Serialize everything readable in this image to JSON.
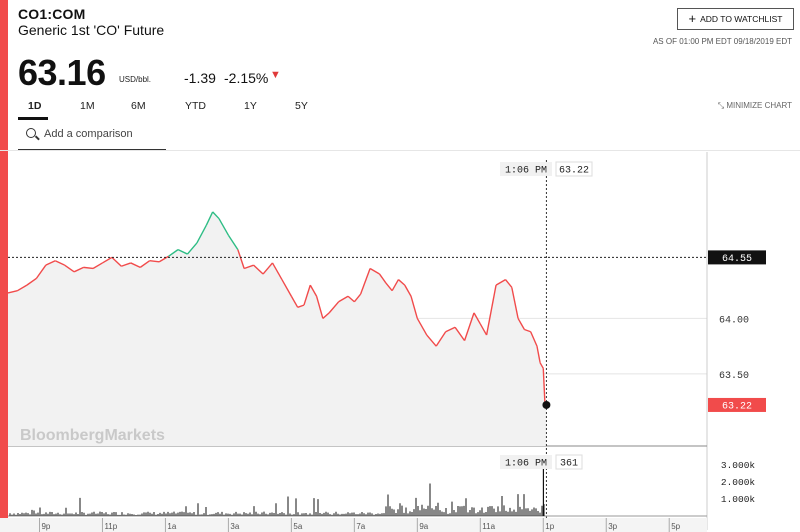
{
  "header": {
    "ticker": "CO1:COM",
    "name": "Generic 1st 'CO' Future",
    "watchlist_label": "ADD TO WATCHLIST",
    "as_of": "AS OF 01:00 PM EDT 09/18/2019 EDT",
    "price": "63.16",
    "unit": "USD/bbl.",
    "change": "-1.39",
    "change_pct": "-2.15%"
  },
  "tabs": [
    "1D",
    "1M",
    "6M",
    "YTD",
    "1Y",
    "5Y"
  ],
  "active_tab": "1D",
  "minimize_label": "MINIMIZE CHART",
  "compare_placeholder": "Add a comparison",
  "watermark": "BloombergMarkets",
  "colors": {
    "down": "#f14b4b",
    "up": "#2ebd85",
    "fill": "#f2f2f2"
  },
  "chart_data": {
    "type": "line",
    "ylim": [
      62.85,
      65.5
    ],
    "y_ticks": [
      "64.00",
      "63.50"
    ],
    "y_ticks_values": [
      64.0,
      63.5
    ],
    "x_ticks": [
      "9p",
      "11p",
      "1a",
      "3a",
      "5a",
      "7a",
      "9a",
      "11a",
      "1p",
      "3p",
      "5p"
    ],
    "x_ticks_hours": [
      21,
      23,
      25,
      27,
      29,
      31,
      33,
      35,
      37,
      39,
      41
    ],
    "x_range_hours": [
      20.0,
      42.2
    ],
    "prev_close": 64.55,
    "prev_close_label": "64.55",
    "last_value": 63.22,
    "last_label": "63.22",
    "crosshair_time": "1:06 PM",
    "crosshair_value": "63.22",
    "crosshair_hour": 37.1,
    "series": [
      {
        "points": [
          [
            20.0,
            64.23
          ],
          [
            20.3,
            64.25
          ],
          [
            20.6,
            64.3
          ],
          [
            20.9,
            64.36
          ],
          [
            21.2,
            64.48
          ],
          [
            21.5,
            64.52
          ],
          [
            21.8,
            64.48
          ],
          [
            22.1,
            64.42
          ],
          [
            22.4,
            64.46
          ],
          [
            22.7,
            64.45
          ],
          [
            23.0,
            64.5
          ],
          [
            23.3,
            64.55
          ],
          [
            23.6,
            64.47
          ],
          [
            23.9,
            64.5
          ],
          [
            24.2,
            64.46
          ],
          [
            24.5,
            64.52
          ],
          [
            24.8,
            64.51
          ],
          [
            25.1,
            64.56
          ],
          [
            25.4,
            64.62
          ],
          [
            25.7,
            64.58
          ],
          [
            26.0,
            64.68
          ],
          [
            26.3,
            64.84
          ],
          [
            26.5,
            64.96
          ],
          [
            26.7,
            64.9
          ],
          [
            27.0,
            64.75
          ],
          [
            27.3,
            64.62
          ],
          [
            27.5,
            64.45
          ],
          [
            27.8,
            64.48
          ],
          [
            28.1,
            64.4
          ],
          [
            28.4,
            64.5
          ],
          [
            28.7,
            64.35
          ],
          [
            29.0,
            64.2
          ],
          [
            29.2,
            64.1
          ],
          [
            29.4,
            64.12
          ],
          [
            29.6,
            64.3
          ],
          [
            29.8,
            64.2
          ],
          [
            30.0,
            64.0
          ],
          [
            30.2,
            64.05
          ],
          [
            30.5,
            64.15
          ],
          [
            30.8,
            64.2
          ],
          [
            31.0,
            64.15
          ],
          [
            31.2,
            64.22
          ],
          [
            31.5,
            64.45
          ],
          [
            31.8,
            64.4
          ],
          [
            32.0,
            64.32
          ],
          [
            32.2,
            64.25
          ],
          [
            32.4,
            64.35
          ],
          [
            32.6,
            64.3
          ],
          [
            32.8,
            64.2
          ],
          [
            33.0,
            64.0
          ],
          [
            33.3,
            63.85
          ],
          [
            33.6,
            63.75
          ],
          [
            33.9,
            63.88
          ],
          [
            34.2,
            63.92
          ],
          [
            34.5,
            63.8
          ],
          [
            34.8,
            64.05
          ],
          [
            35.0,
            63.95
          ],
          [
            35.2,
            63.85
          ],
          [
            35.5,
            64.3
          ],
          [
            35.8,
            64.35
          ],
          [
            36.0,
            64.28
          ],
          [
            36.2,
            64.0
          ],
          [
            36.4,
            63.9
          ],
          [
            36.6,
            63.88
          ],
          [
            36.8,
            63.75
          ],
          [
            36.9,
            63.6
          ],
          [
            37.0,
            63.55
          ],
          [
            37.05,
            63.25
          ],
          [
            37.1,
            63.22
          ]
        ]
      }
    ],
    "volume": {
      "ticks": [
        "3.000k",
        "2.000k",
        "1.000k"
      ],
      "ticks_values": [
        3000,
        2000,
        1000
      ],
      "max": 3400,
      "crosshair_value": "361"
    }
  }
}
